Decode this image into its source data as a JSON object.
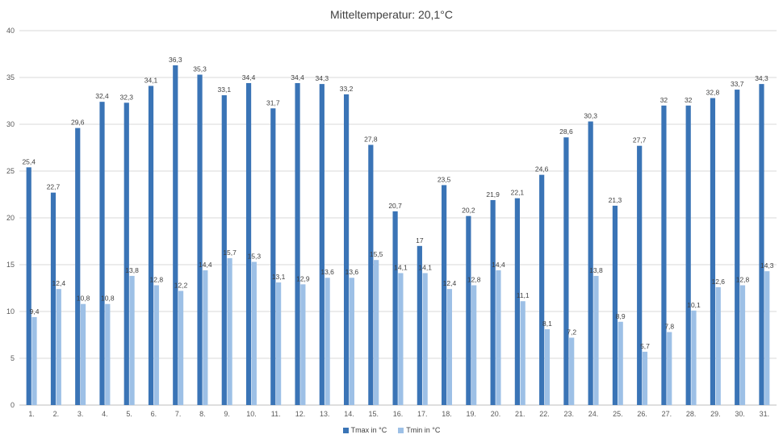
{
  "chart_data": {
    "type": "bar",
    "title": "Mitteltemperatur: 20,1°C",
    "categories": [
      "1.",
      "2.",
      "3.",
      "4.",
      "5.",
      "6.",
      "7.",
      "8.",
      "9.",
      "10.",
      "11.",
      "12.",
      "13.",
      "14.",
      "15.",
      "16.",
      "17.",
      "18.",
      "19.",
      "20.",
      "21.",
      "22.",
      "23.",
      "24.",
      "25.",
      "26.",
      "27.",
      "28.",
      "29.",
      "30.",
      "31."
    ],
    "series": [
      {
        "name": "Tmax in °C",
        "color": "#3a74b6",
        "values": [
          25.4,
          22.7,
          29.6,
          32.4,
          32.3,
          34.1,
          36.3,
          35.3,
          33.1,
          34.4,
          31.7,
          34.4,
          34.3,
          33.2,
          27.8,
          20.7,
          17,
          23.5,
          20.2,
          21.9,
          22.1,
          24.6,
          28.6,
          30.3,
          21.3,
          27.7,
          32,
          32,
          32.8,
          33.7,
          34.3
        ],
        "labels": [
          "25,4",
          "22,7",
          "29,6",
          "32,4",
          "32,3",
          "34,1",
          "36,3",
          "35,3",
          "33,1",
          "34,4",
          "31,7",
          "34,4",
          "34,3",
          "33,2",
          "27,8",
          "20,7",
          "17",
          "23,5",
          "20,2",
          "21,9",
          "22,1",
          "24,6",
          "28,6",
          "30,3",
          "21,3",
          "27,7",
          "32",
          "32",
          "32,8",
          "33,7",
          "34,3"
        ]
      },
      {
        "name": "Tmin in °C",
        "color": "#9dc0e6",
        "values": [
          9.4,
          12.4,
          10.8,
          10.8,
          13.8,
          12.8,
          12.2,
          14.4,
          15.7,
          15.3,
          13.1,
          12.9,
          13.6,
          13.6,
          15.5,
          14.1,
          14.1,
          12.4,
          12.8,
          14.4,
          11.1,
          8.1,
          7.2,
          13.8,
          8.9,
          5.7,
          7.8,
          10.1,
          12.6,
          12.8,
          14.3
        ],
        "labels": [
          "9,4",
          "12,4",
          "10,8",
          "10,8",
          "13,8",
          "12,8",
          "12,2",
          "14,4",
          "15,7",
          "15,3",
          "13,1",
          "12,9",
          "13,6",
          "13,6",
          "15,5",
          "14,1",
          "14,1",
          "12,4",
          "12,8",
          "14,4",
          "11,1",
          "8,1",
          "7,2",
          "13,8",
          "8,9",
          "5,7",
          "7,8",
          "10,1",
          "12,6",
          "12,8",
          "14,3"
        ]
      }
    ],
    "ylim": [
      0,
      40
    ],
    "yticks": [
      "0",
      "5",
      "10",
      "15",
      "20",
      "25",
      "30",
      "35",
      "40"
    ],
    "grid": true,
    "legend_position": "bottom"
  }
}
